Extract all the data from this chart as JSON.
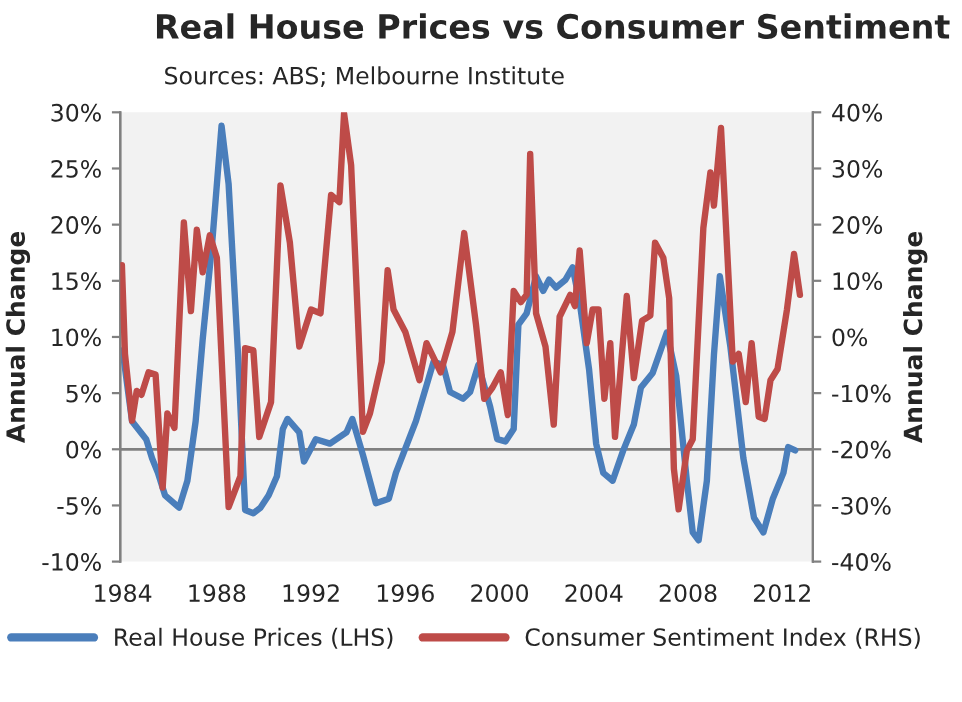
{
  "chart_data": {
    "type": "line",
    "title": "Real House Prices vs Consumer Sentiment",
    "subtitle": "Sources: ABS; Melbourne Institute",
    "ylabel": "Annual Change",
    "y2label": "Annual Change",
    "xlim": [
      1983.9,
      2013.3
    ],
    "xticks": [
      1984,
      1988,
      1992,
      1996,
      2000,
      2004,
      2008,
      2012
    ],
    "ylim": [
      -10,
      30
    ],
    "yticks": [
      {
        "value": -10,
        "label": "-10%"
      },
      {
        "value": -5,
        "label": "-5%"
      },
      {
        "value": 0,
        "label": "0%"
      },
      {
        "value": 5,
        "label": "5%"
      },
      {
        "value": 10,
        "label": "10%"
      },
      {
        "value": 15,
        "label": "15%"
      },
      {
        "value": 20,
        "label": "20%"
      },
      {
        "value": 25,
        "label": "25%"
      },
      {
        "value": 30,
        "label": "30%"
      }
    ],
    "y2lim": [
      -40,
      40
    ],
    "y2ticks": [
      {
        "value": -40,
        "label": "-40%"
      },
      {
        "value": -30,
        "label": "-30%"
      },
      {
        "value": -20,
        "label": "-20%"
      },
      {
        "value": -10,
        "label": "-10%"
      },
      {
        "value": 0,
        "label": "0%"
      },
      {
        "value": 10,
        "label": "10%"
      },
      {
        "value": 20,
        "label": "20%"
      },
      {
        "value": 30,
        "label": "30%"
      },
      {
        "value": 40,
        "label": "40%"
      }
    ],
    "ref_lines": [
      {
        "axis": "y",
        "value": 0,
        "color": "#808080"
      }
    ],
    "legend": "bottom",
    "grid": false,
    "marker": "none",
    "line_style": "solid",
    "series": [
      {
        "name": "Real House Prices (LHS)",
        "color": "#4a7ebb",
        "x": [
          1984.0,
          1984.4,
          1985.0,
          1985.25,
          1985.5,
          1985.8,
          1986.4,
          1986.75,
          1987.1,
          1987.4,
          1987.8,
          1988.2,
          1988.5,
          1988.9,
          1989.2,
          1989.55,
          1989.85,
          1990.2,
          1990.55,
          1990.8,
          1991.0,
          1991.5,
          1991.7,
          1992.2,
          1992.8,
          1993.5,
          1993.75,
          1994.2,
          1994.75,
          1995.3,
          1995.6,
          1996.45,
          1997.2,
          1997.6,
          1997.9,
          1998.45,
          1998.75,
          1999.1,
          1999.6,
          1999.9,
          2000.25,
          2000.6,
          2000.8,
          2001.15,
          2001.55,
          2001.85,
          2002.1,
          2002.4,
          2002.8,
          2003.1,
          2003.4,
          2003.8,
          2004.1,
          2004.4,
          2004.8,
          2005.25,
          2005.7,
          2006.0,
          2006.5,
          2007.1,
          2007.5,
          2007.95,
          2008.2,
          2008.45,
          2008.8,
          2009.1,
          2009.35,
          2009.8,
          2010.35,
          2010.8,
          2011.2,
          2011.6,
          2012.05,
          2012.25,
          2012.55
        ],
        "values": [
          8.8,
          2.5,
          0.9,
          -0.8,
          -2.1,
          -4.1,
          -5.2,
          -2.8,
          2.5,
          9.8,
          18.3,
          28.8,
          23.6,
          8.4,
          -5.4,
          -5.7,
          -5.2,
          -4.1,
          -2.4,
          1.8,
          2.7,
          1.5,
          -1.1,
          0.9,
          0.5,
          1.5,
          2.7,
          -0.5,
          -4.8,
          -4.4,
          -2.1,
          2.5,
          7.8,
          7.5,
          5.1,
          4.5,
          5.1,
          7.5,
          3.8,
          0.9,
          0.7,
          1.8,
          11.1,
          12.1,
          15.4,
          14.1,
          15.1,
          14.4,
          15.1,
          16.2,
          13.1,
          7.1,
          0.5,
          -2.1,
          -2.8,
          -0.1,
          2.2,
          5.5,
          6.8,
          10.4,
          6.5,
          -2.8,
          -7.4,
          -8.1,
          -2.8,
          8.4,
          15.4,
          9.1,
          -0.8,
          -6.1,
          -7.4,
          -4.4,
          -2.1,
          0.2,
          -0.1
        ]
      },
      {
        "name": "Consumer Sentiment Index (RHS)",
        "color": "#be4b48",
        "axis": "y2",
        "x": [
          1983.97,
          1984.1,
          1984.4,
          1984.6,
          1984.8,
          1985.1,
          1985.4,
          1985.7,
          1985.9,
          1986.2,
          1986.6,
          1986.9,
          1987.15,
          1987.4,
          1987.7,
          1988.0,
          1988.5,
          1989.0,
          1989.2,
          1989.55,
          1989.8,
          1990.3,
          1990.7,
          1991.1,
          1991.5,
          1992.0,
          1992.4,
          1992.85,
          1993.2,
          1993.4,
          1993.7,
          1994.2,
          1994.5,
          1995.0,
          1995.25,
          1995.5,
          1996.0,
          1996.6,
          1996.9,
          1997.5,
          1998.0,
          1998.5,
          1999.0,
          1999.35,
          1999.7,
          2000.05,
          2000.35,
          2000.6,
          2000.9,
          2001.15,
          2001.3,
          2001.55,
          2001.95,
          2002.3,
          2002.55,
          2003.0,
          2003.2,
          2003.4,
          2003.7,
          2003.95,
          2004.2,
          2004.45,
          2004.7,
          2004.9,
          2005.4,
          2005.7,
          2006.05,
          2006.4,
          2006.6,
          2006.95,
          2007.2,
          2007.4,
          2007.6,
          2007.95,
          2008.2,
          2008.65,
          2008.95,
          2009.1,
          2009.4,
          2009.9,
          2010.15,
          2010.45,
          2010.7,
          2011.0,
          2011.25,
          2011.5,
          2011.8,
          2012.2,
          2012.5,
          2012.75
        ],
        "values": [
          12.8,
          -3.0,
          -14.9,
          -9.6,
          -10.3,
          -6.3,
          -6.7,
          -26.8,
          -13.6,
          -16.2,
          20.4,
          4.6,
          19.1,
          11.5,
          18.1,
          14.1,
          -30.3,
          -24.8,
          -2.0,
          -2.4,
          -17.8,
          -11.6,
          27.0,
          16.8,
          -1.7,
          4.9,
          4.2,
          25.3,
          24.0,
          39.8,
          30.6,
          -16.9,
          -13.6,
          -4.4,
          11.9,
          4.9,
          0.9,
          -7.7,
          -1.1,
          -6.3,
          0.9,
          18.5,
          2.2,
          -11.0,
          -9.0,
          -6.3,
          -13.9,
          8.2,
          6.2,
          7.5,
          32.6,
          4.2,
          -1.7,
          -15.6,
          3.6,
          7.5,
          5.5,
          15.4,
          -1.1,
          4.9,
          4.9,
          -11.0,
          -1.1,
          -17.8,
          7.3,
          -7.3,
          2.9,
          3.8,
          16.8,
          14.1,
          6.9,
          -23.5,
          -30.7,
          -20.2,
          -18.2,
          19.4,
          29.3,
          23.4,
          37.2,
          -4.4,
          -3.0,
          -11.6,
          -1.1,
          -14.2,
          -14.6,
          -7.7,
          -5.7,
          4.9,
          14.8,
          7.5
        ]
      }
    ]
  }
}
